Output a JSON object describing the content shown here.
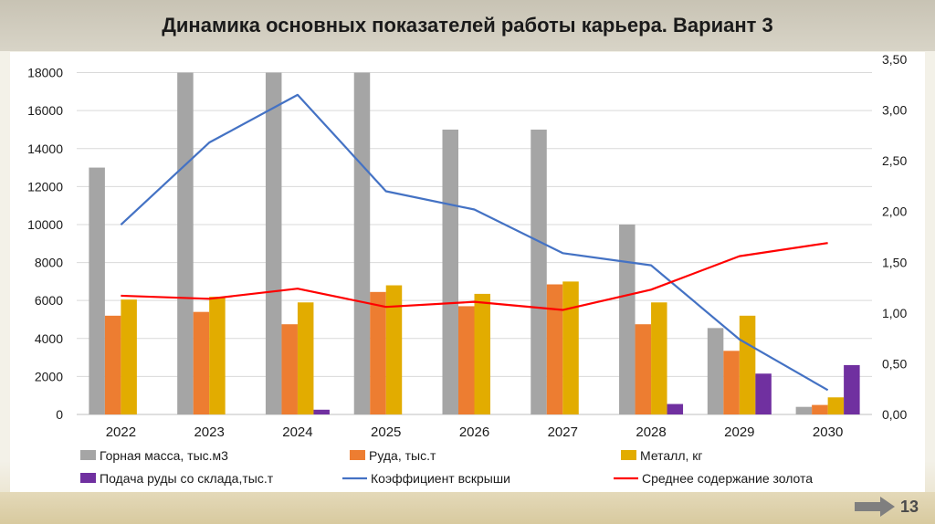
{
  "slide": {
    "title": "Динамика основных показателей работы карьера. Вариант 3",
    "page_number": "13",
    "arrow_icon": "right-arrow-icon"
  },
  "chart_data": {
    "type": "bar",
    "combo": "bar+line, dual axis",
    "categories": [
      "2022",
      "2023",
      "2024",
      "2025",
      "2026",
      "2027",
      "2028",
      "2029",
      "2030"
    ],
    "y_left": {
      "min": 0,
      "max": 18000,
      "ticks": [
        "0",
        "2000",
        "4000",
        "6000",
        "8000",
        "10000",
        "12000",
        "14000",
        "16000",
        "18000"
      ]
    },
    "y_right": {
      "min": 0,
      "max": 3.5,
      "ticks": [
        "0,00",
        "0,50",
        "1,00",
        "1,50",
        "2,00",
        "2,50",
        "3,00",
        "3,50"
      ]
    },
    "grid": true,
    "legend_position": "bottom",
    "bar_series": [
      {
        "name": "Горная масса, тыс.м3",
        "color": "#a5a5a5",
        "values": [
          13000,
          18000,
          18000,
          18000,
          15000,
          15000,
          10000,
          4550,
          400
        ]
      },
      {
        "name": "Руда, тыс.т",
        "color": "#ed7d31",
        "values": [
          5200,
          5400,
          4750,
          6450,
          5700,
          6850,
          4750,
          3350,
          500
        ]
      },
      {
        "name": "Металл, кг",
        "color": "#e2ac00",
        "values": [
          6050,
          6200,
          5900,
          6800,
          6350,
          7000,
          5900,
          5200,
          900
        ]
      },
      {
        "name": "Подача руды со склада,тыс.т",
        "color": "#7030a0",
        "values": [
          0,
          0,
          250,
          0,
          0,
          0,
          550,
          2150,
          2600
        ]
      }
    ],
    "line_series": [
      {
        "name": "Коэффициент вскрыши",
        "color": "#4472c4",
        "axis": "right",
        "values": [
          1.87,
          2.68,
          3.15,
          2.2,
          2.02,
          1.59,
          1.47,
          0.74,
          0.24
        ]
      },
      {
        "name": "Среднее содержание золота",
        "color": "#ff0000",
        "axis": "right",
        "values": [
          1.17,
          1.14,
          1.24,
          1.06,
          1.11,
          1.03,
          1.23,
          1.56,
          1.69
        ]
      }
    ]
  }
}
